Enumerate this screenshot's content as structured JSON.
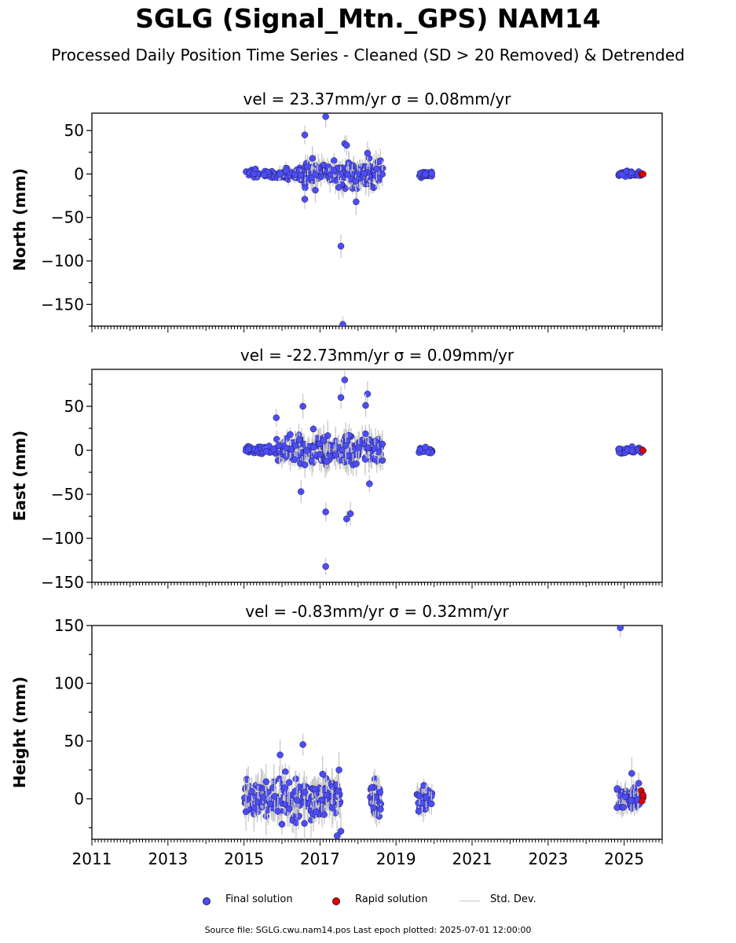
{
  "title": "SGLG (Signal_Mtn._GPS) NAM14",
  "subtitle": "Processed Daily Position Time Series - Cleaned (SD > 20 Removed) & Detrended",
  "footer": "Source file: SGLG.cwu.nam14.pos  Last epoch plotted: 2025-07-01 12:00:00",
  "legend": {
    "final": "Final solution",
    "rapid": "Rapid solution",
    "std": "Std. Dev."
  },
  "colors": {
    "final": "#4d4df5",
    "rapid": "#e00000",
    "std": "#c8c8c8",
    "edge": "#1a1a55"
  },
  "chart_data": [
    {
      "type": "scatter",
      "title": "vel = 23.37mm/yr   σ = 0.08mm/yr",
      "ylabel": "North (mm)",
      "xlim": [
        2011.0,
        2026.0
      ],
      "ylim": [
        -175,
        70
      ],
      "yticks": [
        50,
        0,
        -50,
        -100,
        -150
      ],
      "xticks": [
        "2011",
        "2013",
        "2015",
        "2017",
        "2019",
        "2021",
        "2023",
        "2025"
      ],
      "clusters": [
        {
          "x": [
            2015.05,
            2015.9
          ],
          "spread": 2.5,
          "count": 40
        },
        {
          "x": [
            2015.9,
            2016.6
          ],
          "spread": 4,
          "count": 50
        },
        {
          "x": [
            2016.6,
            2018.65
          ],
          "spread": 8,
          "count": 170
        },
        {
          "x": [
            2019.6,
            2019.95
          ],
          "spread": 2,
          "count": 25
        },
        {
          "x": [
            2024.85,
            2025.45
          ],
          "spread": 1.8,
          "count": 40
        }
      ],
      "outliers": [
        [
          2016.6,
          45
        ],
        [
          2017.15,
          66
        ],
        [
          2017.65,
          35
        ],
        [
          2017.7,
          33
        ],
        [
          2018.25,
          24
        ],
        [
          2016.6,
          -29
        ],
        [
          2017.95,
          -32
        ],
        [
          2017.55,
          -83
        ],
        [
          2017.6,
          -173
        ],
        [
          2016.8,
          18
        ]
      ],
      "rapid": [
        [
          2025.45,
          -0.5
        ],
        [
          2025.48,
          0.3
        ],
        [
          2025.5,
          -0.2
        ]
      ]
    },
    {
      "type": "scatter",
      "title": "vel = -22.73mm/yr   σ = 0.09mm/yr",
      "ylabel": "East (mm)",
      "xlim": [
        2011.0,
        2026.0
      ],
      "ylim": [
        -150,
        92
      ],
      "yticks": [
        50,
        0,
        -50,
        -100,
        -150
      ],
      "xticks": [
        "2011",
        "2013",
        "2015",
        "2017",
        "2019",
        "2021",
        "2023",
        "2025"
      ],
      "clusters": [
        {
          "x": [
            2015.05,
            2015.85
          ],
          "spread": 2.5,
          "count": 40
        },
        {
          "x": [
            2015.85,
            2016.6
          ],
          "spread": 8,
          "count": 60
        },
        {
          "x": [
            2016.6,
            2018.65
          ],
          "spread": 9,
          "count": 170
        },
        {
          "x": [
            2019.6,
            2019.95
          ],
          "spread": 2,
          "count": 25
        },
        {
          "x": [
            2024.85,
            2025.45
          ],
          "spread": 2,
          "count": 40
        }
      ],
      "outliers": [
        [
          2017.65,
          80
        ],
        [
          2018.25,
          64
        ],
        [
          2017.55,
          60
        ],
        [
          2018.2,
          51
        ],
        [
          2016.55,
          50
        ],
        [
          2015.85,
          37
        ],
        [
          2016.5,
          -47
        ],
        [
          2018.3,
          -38
        ],
        [
          2017.15,
          -70
        ],
        [
          2017.8,
          -72
        ],
        [
          2017.7,
          -78
        ],
        [
          2017.15,
          -132
        ]
      ],
      "rapid": [
        [
          2025.48,
          0.5
        ],
        [
          2025.5,
          -0.3
        ]
      ]
    },
    {
      "type": "scatter",
      "title": "vel = -0.83mm/yr   σ = 0.32mm/yr",
      "ylabel": "Height (mm)",
      "xlim": [
        2011.0,
        2026.0
      ],
      "ylim": [
        -35,
        150
      ],
      "yticks": [
        150,
        100,
        50,
        0
      ],
      "xticks": [
        "2011",
        "2013",
        "2015",
        "2017",
        "2019",
        "2021",
        "2023",
        "2025"
      ],
      "clusters": [
        {
          "x": [
            2015.0,
            2016.55
          ],
          "spread": 9,
          "count": 110
        },
        {
          "x": [
            2016.55,
            2017.55
          ],
          "spread": 9,
          "count": 90
        },
        {
          "x": [
            2018.3,
            2018.6
          ],
          "spread": 8,
          "count": 40
        },
        {
          "x": [
            2019.55,
            2019.95
          ],
          "spread": 6,
          "count": 35
        },
        {
          "x": [
            2024.8,
            2025.4
          ],
          "spread": 5,
          "count": 55
        }
      ],
      "outliers": [
        [
          2024.9,
          148
        ],
        [
          2016.55,
          47
        ],
        [
          2015.95,
          38
        ],
        [
          2017.5,
          25
        ],
        [
          2025.2,
          22
        ],
        [
          2017.55,
          -28
        ],
        [
          2017.45,
          -32
        ],
        [
          2016.0,
          -22
        ]
      ],
      "rapid": [
        [
          2025.45,
          7
        ],
        [
          2025.48,
          4
        ],
        [
          2025.5,
          1
        ],
        [
          2025.47,
          -2
        ],
        [
          2025.5,
          3
        ]
      ]
    }
  ]
}
